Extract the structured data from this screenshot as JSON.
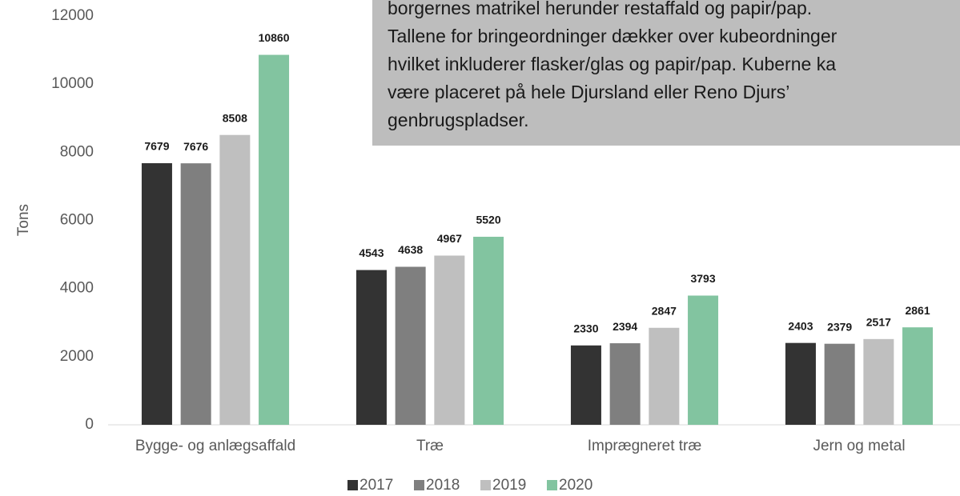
{
  "chart_data": {
    "type": "bar",
    "y_label": "Tons",
    "categories": [
      "Bygge- og anlægsaffald",
      "Træ",
      "Imprægneret træ",
      "Jern og metal"
    ],
    "series": [
      {
        "name": "2017",
        "color": "#333333",
        "values": [
          7679,
          4543,
          2330,
          2403
        ]
      },
      {
        "name": "2018",
        "color": "#7f7f7f",
        "values": [
          7676,
          4638,
          2394,
          2379
        ]
      },
      {
        "name": "2019",
        "color": "#bfbfbf",
        "values": [
          8508,
          4967,
          2847,
          2517
        ]
      },
      {
        "name": "2020",
        "color": "#82c4a0",
        "values": [
          10860,
          5520,
          3793,
          2861
        ]
      }
    ],
    "ylim": [
      0,
      12000
    ],
    "yticks": [
      0,
      2000,
      4000,
      6000,
      8000,
      10000,
      12000
    ],
    "grid": false,
    "legend": "bottom",
    "annotation": [
      "borgernes matrikel herunder restaffald og papir/pap.",
      "Tallene for bringeordninger dækker over kubeordninger",
      "hvilket inkluderer flasker/glas og papir/pap. Kuberne ka",
      "være placeret på hele Djursland eller Reno Djurs’",
      "genbrugspladser."
    ]
  }
}
